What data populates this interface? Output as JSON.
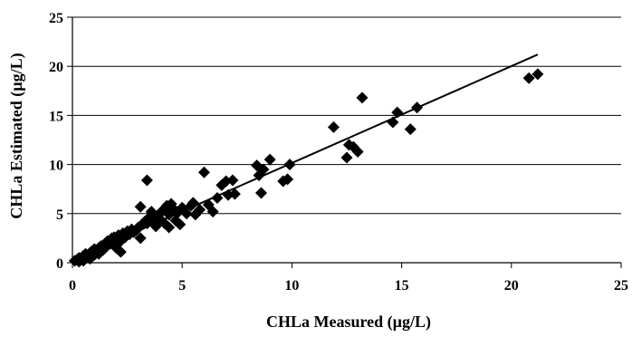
{
  "chart_data": {
    "type": "scatter",
    "title": "",
    "xlabel": "CHLa Measured (µg/L)",
    "ylabel": "CHLa Estimated (µg/L)",
    "xlim": [
      0,
      25
    ],
    "ylim": [
      0,
      25
    ],
    "xticks": [
      0,
      5,
      10,
      15,
      20,
      25
    ],
    "yticks": [
      0,
      5,
      10,
      15,
      20,
      25
    ],
    "grid": "horizontal",
    "legend": "none",
    "marker": "diamond",
    "marker_color": "#000000",
    "series": [
      {
        "points": [
          [
            0.1,
            0.2
          ],
          [
            0.2,
            0.3
          ],
          [
            0.3,
            0.1
          ],
          [
            0.3,
            0.5
          ],
          [
            0.4,
            0.4
          ],
          [
            0.5,
            0.7
          ],
          [
            0.5,
            0.2
          ],
          [
            0.6,
            0.9
          ],
          [
            0.7,
            0.6
          ],
          [
            0.8,
            1.0
          ],
          [
            0.8,
            0.4
          ],
          [
            0.9,
            1.2
          ],
          [
            1.0,
            0.8
          ],
          [
            1.0,
            1.4
          ],
          [
            1.1,
            1.1
          ],
          [
            1.2,
            1.5
          ],
          [
            1.2,
            0.9
          ],
          [
            1.3,
            1.7
          ],
          [
            1.4,
            1.3
          ],
          [
            1.5,
            2.0
          ],
          [
            1.5,
            1.6
          ],
          [
            1.6,
            2.2
          ],
          [
            1.7,
            1.9
          ],
          [
            1.8,
            2.5
          ],
          [
            1.8,
            2.1
          ],
          [
            1.9,
            2.6
          ],
          [
            2.0,
            1.5
          ],
          [
            2.0,
            2.3
          ],
          [
            2.1,
            2.8
          ],
          [
            2.2,
            1.1
          ],
          [
            2.2,
            2.2
          ],
          [
            2.3,
            3.0
          ],
          [
            2.4,
            2.6
          ],
          [
            2.5,
            3.2
          ],
          [
            2.6,
            2.9
          ],
          [
            2.7,
            3.4
          ],
          [
            2.8,
            3.1
          ],
          [
            2.9,
            3.3
          ],
          [
            3.0,
            3.6
          ],
          [
            3.1,
            2.5
          ],
          [
            3.1,
            5.7
          ],
          [
            3.2,
            3.9
          ],
          [
            3.3,
            4.2
          ],
          [
            3.4,
            8.4
          ],
          [
            3.4,
            4.0
          ],
          [
            3.5,
            4.6
          ],
          [
            3.6,
            5.2
          ],
          [
            3.7,
            4.1
          ],
          [
            3.8,
            3.7
          ],
          [
            3.9,
            4.8
          ],
          [
            4.0,
            4.4
          ],
          [
            4.1,
            5.3
          ],
          [
            4.2,
            4.0
          ],
          [
            4.3,
            5.8
          ],
          [
            4.4,
            3.6
          ],
          [
            4.4,
            4.9
          ],
          [
            4.5,
            6.0
          ],
          [
            4.6,
            5.5
          ],
          [
            4.7,
            4.3
          ],
          [
            4.8,
            5.1
          ],
          [
            4.9,
            3.9
          ],
          [
            5.0,
            5.6
          ],
          [
            5.2,
            5.0
          ],
          [
            5.4,
            5.8
          ],
          [
            5.5,
            6.1
          ],
          [
            5.6,
            4.9
          ],
          [
            5.8,
            5.4
          ],
          [
            6.0,
            9.2
          ],
          [
            6.2,
            5.9
          ],
          [
            6.4,
            5.2
          ],
          [
            6.6,
            6.6
          ],
          [
            6.8,
            7.9
          ],
          [
            7.0,
            8.3
          ],
          [
            7.1,
            6.9
          ],
          [
            7.3,
            8.4
          ],
          [
            7.4,
            7.0
          ],
          [
            8.4,
            9.9
          ],
          [
            8.5,
            8.9
          ],
          [
            8.6,
            7.1
          ],
          [
            8.7,
            9.5
          ],
          [
            9.0,
            10.5
          ],
          [
            9.6,
            8.3
          ],
          [
            9.8,
            8.5
          ],
          [
            9.9,
            10.0
          ],
          [
            11.9,
            13.8
          ],
          [
            12.5,
            10.7
          ],
          [
            12.6,
            12.0
          ],
          [
            12.8,
            11.8
          ],
          [
            13.0,
            11.3
          ],
          [
            13.2,
            16.8
          ],
          [
            14.6,
            14.3
          ],
          [
            14.8,
            15.3
          ],
          [
            15.4,
            13.6
          ],
          [
            15.7,
            15.8
          ],
          [
            20.8,
            18.8
          ],
          [
            21.2,
            19.2
          ]
        ]
      }
    ],
    "trendline": {
      "x": [
        0,
        21.2
      ],
      "y": [
        0.3,
        21.2
      ]
    }
  }
}
